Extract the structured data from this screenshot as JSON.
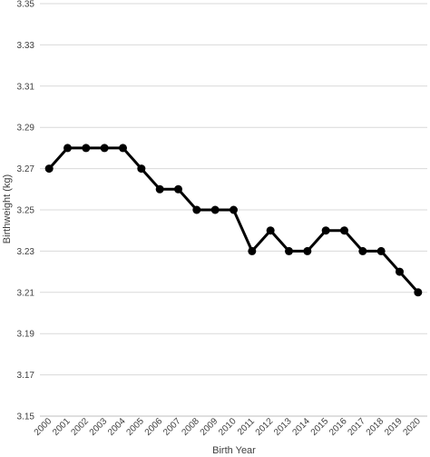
{
  "chart_data": {
    "type": "line",
    "xlabel": "Birth Year",
    "ylabel": "Birthweight (kg)",
    "x": [
      "2000",
      "2001",
      "2002",
      "2003",
      "2004",
      "2005",
      "2006",
      "2007",
      "2008",
      "2009",
      "2010",
      "2011",
      "2012",
      "2013",
      "2014",
      "2015",
      "2016",
      "2017",
      "2018",
      "2019",
      "2020"
    ],
    "series": [
      {
        "values": [
          3.27,
          3.28,
          3.28,
          3.28,
          3.28,
          3.27,
          3.26,
          3.26,
          3.25,
          3.25,
          3.25,
          3.23,
          3.24,
          3.23,
          3.23,
          3.24,
          3.24,
          3.23,
          3.23,
          3.22,
          3.21
        ]
      }
    ],
    "ylim": [
      3.15,
      3.35
    ],
    "yticks": [
      "3.15",
      "3.17",
      "3.19",
      "3.21",
      "3.23",
      "3.25",
      "3.27",
      "3.29",
      "3.31",
      "3.33",
      "3.35"
    ],
    "grid": true,
    "colors": {
      "line": "#000000",
      "grid": "#d9d9d9",
      "axis": "#bfbfbf"
    }
  }
}
